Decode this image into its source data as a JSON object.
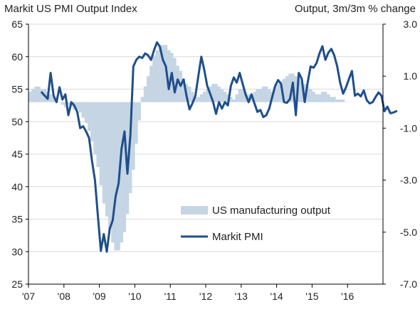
{
  "chart_data": {
    "type": "bar+line",
    "title_left": "Markit US PMI Output  Index",
    "title_right": "Output, 3m/3m % change",
    "x_labels": [
      "'07",
      "'08",
      "'09",
      "'10",
      "'11",
      "'12",
      "'13",
      "'14",
      "'15",
      "'16"
    ],
    "left_axis": {
      "ticks": [
        65,
        60,
        55,
        50,
        45,
        40,
        35,
        30,
        25
      ],
      "min": 25,
      "max": 65
    },
    "right_axis": {
      "ticks": [
        "3.0",
        "1.0",
        "-1.0",
        "-3.0",
        "-5.0",
        "-7.0"
      ],
      "min": -7.0,
      "max": 3.0
    },
    "series": [
      {
        "name": "US manufacturing output",
        "kind": "bar",
        "axis": "right",
        "color": "#c5d5e4",
        "start": "2007-01",
        "values": [
          0.4,
          0.5,
          0.6,
          0.6,
          0.5,
          0.5,
          0.4,
          0.3,
          0.2,
          0.1,
          0.0,
          -0.1,
          -0.2,
          -0.1,
          -0.2,
          -0.3,
          -0.3,
          -0.4,
          -0.6,
          -0.8,
          -1.1,
          -1.5,
          -2.0,
          -2.5,
          -3.2,
          -3.9,
          -4.4,
          -4.9,
          -5.4,
          -5.7,
          -5.7,
          -5.4,
          -5.0,
          -4.3,
          -3.5,
          -2.6,
          -1.6,
          -0.7,
          0.2,
          0.6,
          1.0,
          1.4,
          1.8,
          2.0,
          2.2,
          2.2,
          2.2,
          2.0,
          1.9,
          1.7,
          1.4,
          1.2,
          0.9,
          0.7,
          0.6,
          0.4,
          0.2,
          0.2,
          0.3,
          0.4,
          0.5,
          0.6,
          0.7,
          0.7,
          0.6,
          0.5,
          0.4,
          0.3,
          0.2,
          0.1,
          0.3,
          0.5,
          0.5,
          0.4,
          0.3,
          0.3,
          0.4,
          0.5,
          0.5,
          0.6,
          0.6,
          0.5,
          0.4,
          0.6,
          0.7,
          0.8,
          0.9,
          1.0,
          1.1,
          1.1,
          1.0,
          0.9,
          0.8,
          0.7,
          0.6,
          0.5,
          0.4,
          0.3,
          0.3,
          0.4,
          0.4,
          0.3,
          0.2,
          0.2,
          0.1,
          0.1,
          0.1,
          0.0
        ]
      },
      {
        "name": "Markit PMI",
        "kind": "line",
        "axis": "left",
        "color": "#1f4e8c",
        "start": "2007-05",
        "values": [
          54.5,
          54.0,
          53.5,
          57.5,
          54.0,
          53.0,
          55.3,
          53.4,
          54.2,
          51.0,
          53.0,
          52.5,
          51.5,
          49.0,
          49.3,
          48.5,
          47.5,
          44.0,
          41.0,
          35.5,
          30.1,
          32.7,
          30.0,
          33.5,
          34.8,
          38.5,
          40.5,
          45.8,
          48.5,
          42.0,
          48.0,
          58.5,
          59.5,
          60.0,
          59.8,
          60.5,
          60.2,
          59.5,
          61.0,
          62.2,
          61.5,
          59.5,
          58.5,
          55.0,
          57.5,
          54.5,
          56.5,
          55.5,
          56.5,
          54.0,
          51.9,
          52.8,
          54.0,
          57.0,
          60.0,
          58.0,
          55.5,
          54.3,
          53.0,
          51.2,
          53.0,
          52.0,
          53.0,
          52.5,
          55.5,
          56.8,
          56.0,
          57.5,
          55.8,
          54.2,
          53.0,
          54.2,
          52.8,
          51.5,
          51.8,
          50.7,
          51.0,
          52.0,
          53.8,
          55.5,
          56.4,
          55.8,
          53.0,
          52.9,
          53.5,
          56.0,
          51.0,
          57.5,
          56.6,
          53.0,
          56.0,
          58.5,
          58.3,
          59.0,
          60.5,
          61.6,
          59.5,
          60.6,
          61.2,
          60.2,
          58.5,
          56.0,
          54.3,
          55.3,
          56.6,
          57.8,
          54.0,
          54.3,
          53.9,
          54.8,
          53.3,
          52.8,
          53.0,
          53.8,
          54.5,
          54.0,
          51.6,
          52.3,
          51.3,
          51.4,
          51.6
        ]
      }
    ],
    "legend": [
      "US manufacturing output",
      "Markit PMI"
    ],
    "grid": "horizontal",
    "legend_position": "lower-center"
  }
}
